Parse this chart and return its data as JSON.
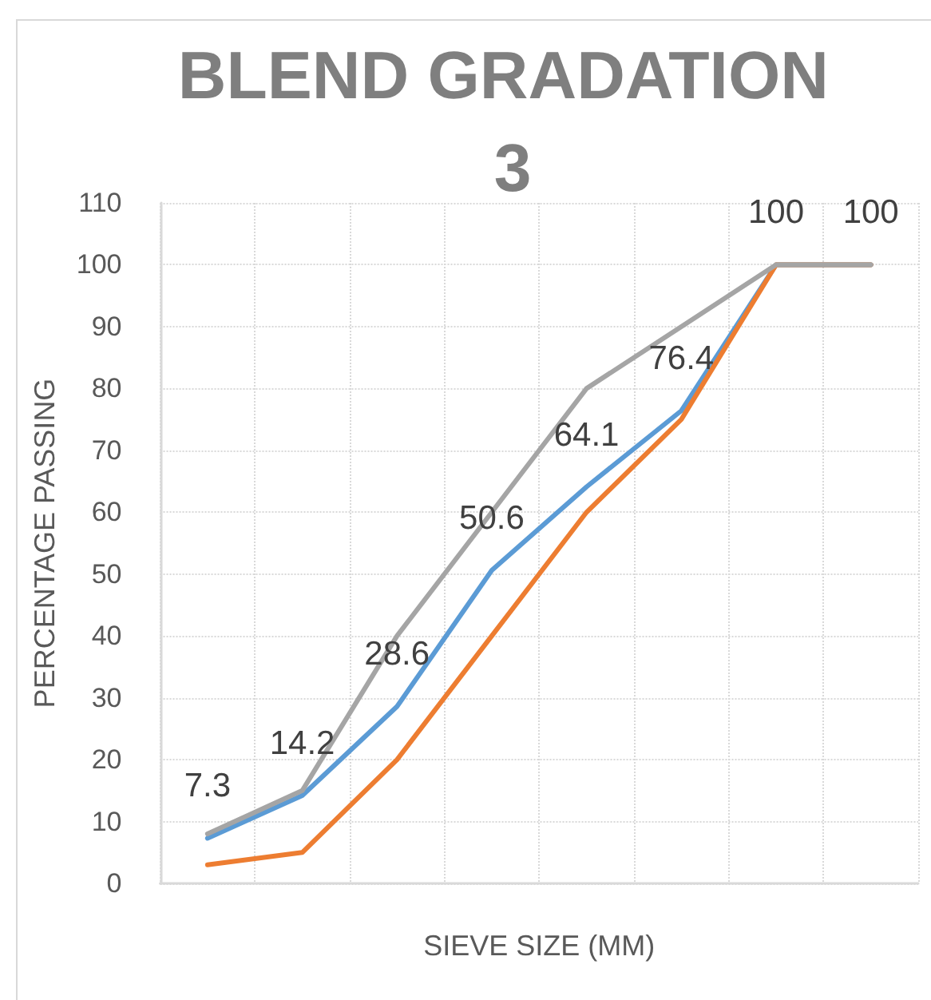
{
  "chart_data": {
    "type": "line",
    "title": "BLEND GRADATION 3",
    "xlabel": "SIEVE SIZE (MM)",
    "ylabel": "PERCENTAGE PASSING",
    "categories": [
      null,
      null,
      null,
      null,
      null,
      null,
      null,
      null
    ],
    "series": [
      {
        "color": "#5b9bd5",
        "values": [
          7.3,
          14.2,
          28.6,
          50.6,
          64.1,
          76.4,
          100,
          100
        ],
        "value_labels": [
          "7.3",
          "14.2",
          "28.6",
          "50.6",
          "64.1",
          "76.4",
          "100",
          "100"
        ]
      },
      {
        "color": "#ed7d31",
        "values": [
          3,
          5,
          20,
          40,
          60,
          75,
          100,
          100
        ]
      },
      {
        "color": "#a5a5a5",
        "values": [
          8,
          15,
          40,
          60,
          80,
          90,
          100,
          100
        ]
      }
    ],
    "ylim": [
      0,
      110
    ],
    "yticks": [
      0,
      10,
      20,
      30,
      40,
      50,
      60,
      70,
      80,
      90,
      100,
      110
    ],
    "grid": true
  }
}
